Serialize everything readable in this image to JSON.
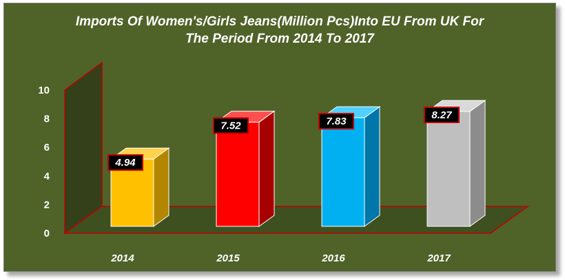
{
  "chart_data": {
    "type": "bar",
    "title_line1": "Imports Of Women's/Girls Jeans(Million Pcs)Into EU From UK For",
    "title_line2": "The Period From 2014 To 2017",
    "categories": [
      "2014",
      "2015",
      "2016",
      "2017"
    ],
    "values": [
      4.94,
      7.52,
      7.83,
      8.27
    ],
    "value_labels": [
      "4.94",
      "7.52",
      "7.83",
      "8.27"
    ],
    "bar_colors": [
      "#ffc000",
      "#ff0000",
      "#00b0f0",
      "#bfbfbf"
    ],
    "bar_side_colors": [
      "#b38600",
      "#a60000",
      "#0077a8",
      "#8c8c8c"
    ],
    "bar_top_colors": [
      "#ffd24d",
      "#ff5050",
      "#4fd0ff",
      "#d9d9d9"
    ],
    "yticks": [
      "0",
      "2",
      "4",
      "6",
      "8",
      "10"
    ],
    "ylim": [
      0,
      10
    ],
    "xlabel": "",
    "ylabel": "",
    "legend": "none",
    "background": "#4f6228",
    "wall_color": "#344019",
    "floor_color": "#3f5020",
    "edge_color": "#c00000"
  }
}
